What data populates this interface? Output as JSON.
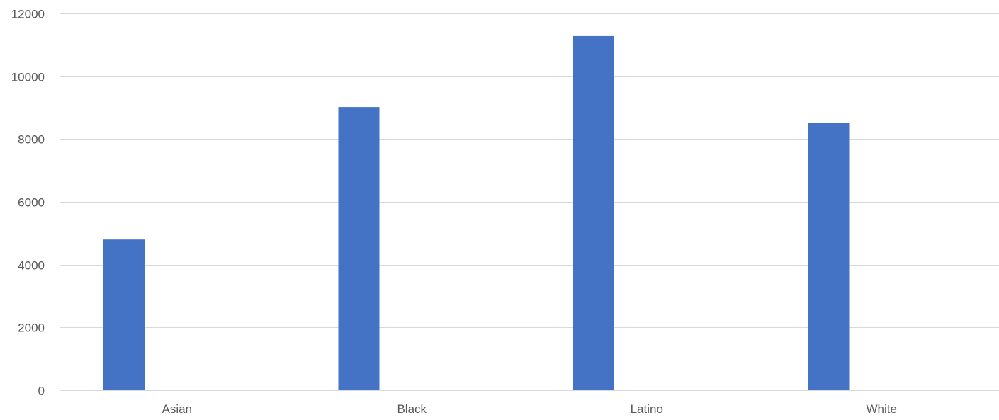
{
  "chart_data": {
    "type": "bar",
    "title": "",
    "xlabel": "",
    "ylabel": "",
    "categories": [
      "Asian",
      "Black",
      "Latino",
      "White"
    ],
    "series": [
      {
        "values": [
          4800,
          9020,
          11280,
          8520
        ]
      }
    ],
    "ylim": [
      0,
      12000
    ],
    "yticks": [
      0,
      2000,
      4000,
      6000,
      8000,
      10000,
      12000
    ],
    "grid": true,
    "legend": "none",
    "colors": {
      "bar": "#4472C4",
      "grid": "#D9D9D9",
      "text": "#595959"
    }
  }
}
